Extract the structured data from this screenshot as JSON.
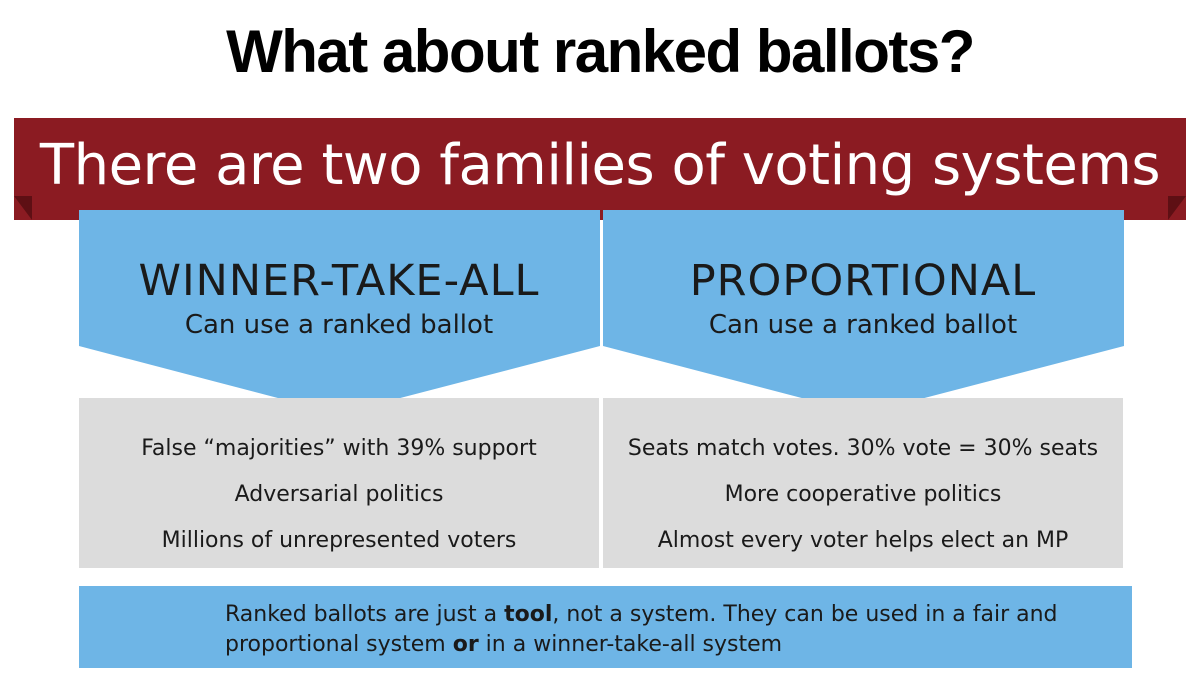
{
  "title": "What about ranked ballots?",
  "banner": "There are two families of voting systems",
  "colors": {
    "banner": "#8b1b22",
    "banner_fold": "#5e0f14",
    "arrow_blue": "#6eb5e6",
    "trait_box": "#dcdcdc",
    "note_blue": "#6eb5e6"
  },
  "families": [
    {
      "name": "WINNER-TAKE-ALL",
      "subtitle": "Can use a ranked ballot",
      "traits": [
        "False “majorities” with 39% support",
        "Adversarial politics",
        "Millions of unrepresented voters"
      ]
    },
    {
      "name": "PROPORTIONAL",
      "subtitle": "Can use a ranked ballot",
      "traits": [
        "Seats match votes. 30% vote = 30% seats",
        "More cooperative politics",
        "Almost every voter helps elect an MP"
      ]
    }
  ],
  "note": {
    "part1": "Ranked ballots are just a ",
    "bold1": "tool",
    "part2": ", not a system. They can be used in a fair and proportional system ",
    "bold2": "or",
    "part3": " in a winner-take-all system"
  }
}
